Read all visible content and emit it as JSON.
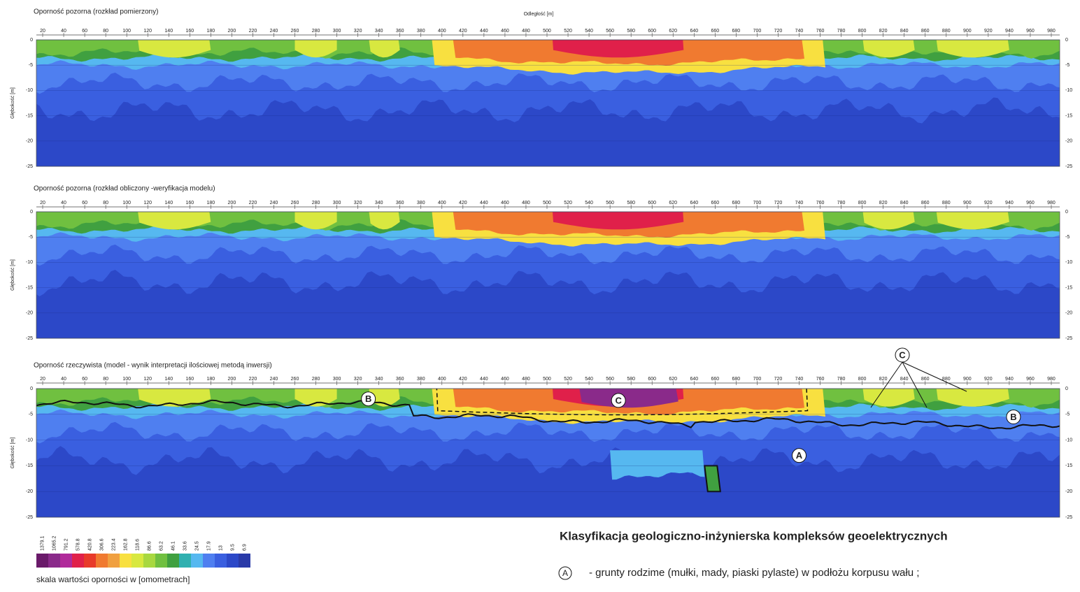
{
  "chart_data": [
    {
      "type": "contour",
      "title": "Oporność pozorna (rozkład pomierzony)",
      "xlabel": "Odległość [m]",
      "ylabel": "Głębokość [m]",
      "xlim": [
        14,
        988
      ],
      "ylim": [
        -25,
        0
      ],
      "xticks": [
        20,
        40,
        60,
        80,
        100,
        120,
        140,
        160,
        180,
        200,
        220,
        240,
        260,
        280,
        300,
        320,
        340,
        360,
        380,
        400,
        420,
        440,
        460,
        480,
        500,
        520,
        540,
        560,
        580,
        600,
        620,
        640,
        660,
        680,
        700,
        720,
        740,
        760,
        780,
        800,
        820,
        840,
        860,
        880,
        900,
        920,
        940,
        960,
        980
      ],
      "yticks": [
        0,
        -5,
        -10,
        -15,
        -20,
        -25
      ]
    },
    {
      "type": "contour",
      "title": "Oporność pozorna (rozkład obliczony -weryfikacja modelu)",
      "ylabel": "Głębokość [m]",
      "xlim": [
        14,
        988
      ],
      "ylim": [
        -25,
        0
      ],
      "xticks": [
        20,
        40,
        60,
        80,
        100,
        120,
        140,
        160,
        180,
        200,
        220,
        240,
        260,
        280,
        300,
        320,
        340,
        360,
        380,
        400,
        420,
        440,
        460,
        480,
        500,
        520,
        540,
        560,
        580,
        600,
        620,
        640,
        660,
        680,
        700,
        720,
        740,
        760,
        780,
        800,
        820,
        840,
        860,
        880,
        900,
        920,
        940,
        960,
        980
      ],
      "yticks": [
        0,
        -5,
        -10,
        -15,
        -20,
        -25
      ]
    },
    {
      "type": "contour",
      "title": "Oporność rzeczywista (model - wynik interpretacji ilościowej metodą inwersji)",
      "ylabel": "Głębokość [m]",
      "xlim": [
        14,
        988
      ],
      "ylim": [
        -25,
        0
      ],
      "xticks": [
        20,
        40,
        60,
        80,
        100,
        120,
        140,
        160,
        180,
        200,
        220,
        240,
        260,
        280,
        300,
        320,
        340,
        360,
        380,
        400,
        420,
        440,
        460,
        480,
        500,
        520,
        540,
        560,
        580,
        600,
        620,
        640,
        660,
        680,
        700,
        720,
        740,
        760,
        780,
        800,
        820,
        840,
        860,
        880,
        900,
        920,
        940,
        960,
        980
      ],
      "yticks": [
        0,
        -5,
        -10,
        -15,
        -20,
        -25
      ],
      "annotations": [
        "A",
        "B",
        "B",
        "C",
        "C"
      ]
    }
  ],
  "colorbar": {
    "caption": "skala wartości oporności w [omometrach]",
    "labels": [
      1379.1,
      1065.2,
      791.2,
      578.8,
      420.8,
      306.6,
      223.4,
      162.8,
      118.6,
      86.6,
      63.2,
      46.1,
      33.6,
      24.5,
      17.9,
      13.0,
      9.5,
      6.9
    ],
    "colors": [
      "#6a1a6a",
      "#8a2a8a",
      "#b02a9a",
      "#e0204a",
      "#e83a2a",
      "#f07a30",
      "#f0a040",
      "#f8e040",
      "#d8e840",
      "#a8d840",
      "#70c040",
      "#40a040",
      "#30b0b0",
      "#56b8f0",
      "#4f7ff0",
      "#3a5fe0",
      "#2c48c8",
      "#2a3aa8"
    ]
  },
  "classification": {
    "title": "Klasyfikacja geologiczno-inżynierska kompleksów geoelektrycznych",
    "items": [
      {
        "symbol": "A",
        "text": "- grunty rodzime (mułki, mady, piaski pylaste) w podłożu korpusu wału ;"
      }
    ]
  }
}
